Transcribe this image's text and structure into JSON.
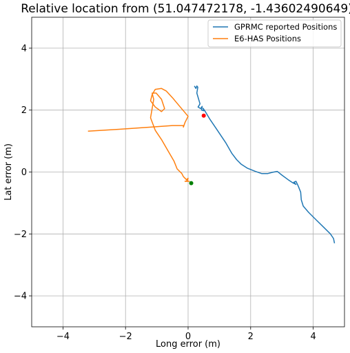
{
  "chart_data": {
    "type": "line",
    "title": "Relative location from (51.047472178, -1.43602490649)",
    "xlabel": "Long error (m)",
    "ylabel": "Lat error (m)",
    "xlim": [
      -5.0,
      5.0
    ],
    "ylim": [
      -5.0,
      5.0
    ],
    "xticks": [
      -4,
      -2,
      0,
      2,
      4
    ],
    "yticks": [
      -4,
      -2,
      0,
      2,
      4
    ],
    "grid": true,
    "legend_position": "top-right",
    "series": [
      {
        "name": "GPRMC reported Positions",
        "color": "#1f77b4",
        "points": [
          [
            0.2,
            2.78
          ],
          [
            0.25,
            2.7
          ],
          [
            0.28,
            2.78
          ],
          [
            0.31,
            2.74
          ],
          [
            0.28,
            2.55
          ],
          [
            0.38,
            2.2
          ],
          [
            0.32,
            2.1
          ],
          [
            0.4,
            2.05
          ],
          [
            0.45,
            2.12
          ],
          [
            0.43,
            2.0
          ],
          [
            0.5,
            1.98
          ],
          [
            0.48,
            2.06
          ],
          [
            0.55,
            1.95
          ],
          [
            0.7,
            1.7
          ],
          [
            0.9,
            1.4
          ],
          [
            1.2,
            0.95
          ],
          [
            1.4,
            0.6
          ],
          [
            1.55,
            0.4
          ],
          [
            1.7,
            0.25
          ],
          [
            1.9,
            0.12
          ],
          [
            2.15,
            0.02
          ],
          [
            2.35,
            -0.05
          ],
          [
            2.55,
            -0.05
          ],
          [
            2.7,
            -0.01
          ],
          [
            2.85,
            0.02
          ],
          [
            3.0,
            -0.1
          ],
          [
            3.2,
            -0.25
          ],
          [
            3.35,
            -0.35
          ],
          [
            3.45,
            -0.4
          ],
          [
            3.38,
            -0.33
          ],
          [
            3.45,
            -0.3
          ],
          [
            3.52,
            -0.45
          ],
          [
            3.6,
            -0.65
          ],
          [
            3.62,
            -0.9
          ],
          [
            3.68,
            -1.1
          ],
          [
            3.85,
            -1.3
          ],
          [
            4.1,
            -1.55
          ],
          [
            4.35,
            -1.8
          ],
          [
            4.55,
            -2.0
          ],
          [
            4.65,
            -2.15
          ],
          [
            4.68,
            -2.3
          ]
        ]
      },
      {
        "name": "E6-HAS Positions",
        "color": "#ff7f0e",
        "points": [
          [
            -3.2,
            1.32
          ],
          [
            -2.2,
            1.38
          ],
          [
            -1.2,
            1.45
          ],
          [
            -0.5,
            1.5
          ],
          [
            -0.15,
            1.5
          ],
          [
            -0.15,
            1.45
          ],
          [
            -0.1,
            1.6
          ],
          [
            0.0,
            1.8
          ],
          [
            -0.25,
            2.1
          ],
          [
            -0.5,
            2.4
          ],
          [
            -0.7,
            2.62
          ],
          [
            -0.85,
            2.7
          ],
          [
            -1.05,
            2.67
          ],
          [
            -1.15,
            2.5
          ],
          [
            -1.2,
            2.3
          ],
          [
            -1.05,
            2.1
          ],
          [
            -0.85,
            1.95
          ],
          [
            -0.75,
            2.05
          ],
          [
            -0.85,
            2.35
          ],
          [
            -1.02,
            2.55
          ],
          [
            -1.15,
            2.55
          ],
          [
            -1.1,
            2.35
          ],
          [
            -1.15,
            2.05
          ],
          [
            -1.2,
            1.75
          ],
          [
            -1.05,
            1.35
          ],
          [
            -0.85,
            1.05
          ],
          [
            -0.65,
            0.7
          ],
          [
            -0.45,
            0.35
          ],
          [
            -0.35,
            0.1
          ],
          [
            -0.2,
            -0.05
          ],
          [
            -0.15,
            -0.15
          ],
          [
            -0.05,
            -0.25
          ],
          [
            0.0,
            -0.2
          ],
          [
            -0.02,
            -0.28
          ],
          [
            -0.1,
            -0.3
          ],
          [
            0.05,
            -0.3
          ]
        ]
      }
    ],
    "markers": [
      {
        "x": 0.5,
        "y": 1.82,
        "color": "#ff0000"
      },
      {
        "x": 0.1,
        "y": -0.36,
        "color": "#008000"
      }
    ]
  }
}
